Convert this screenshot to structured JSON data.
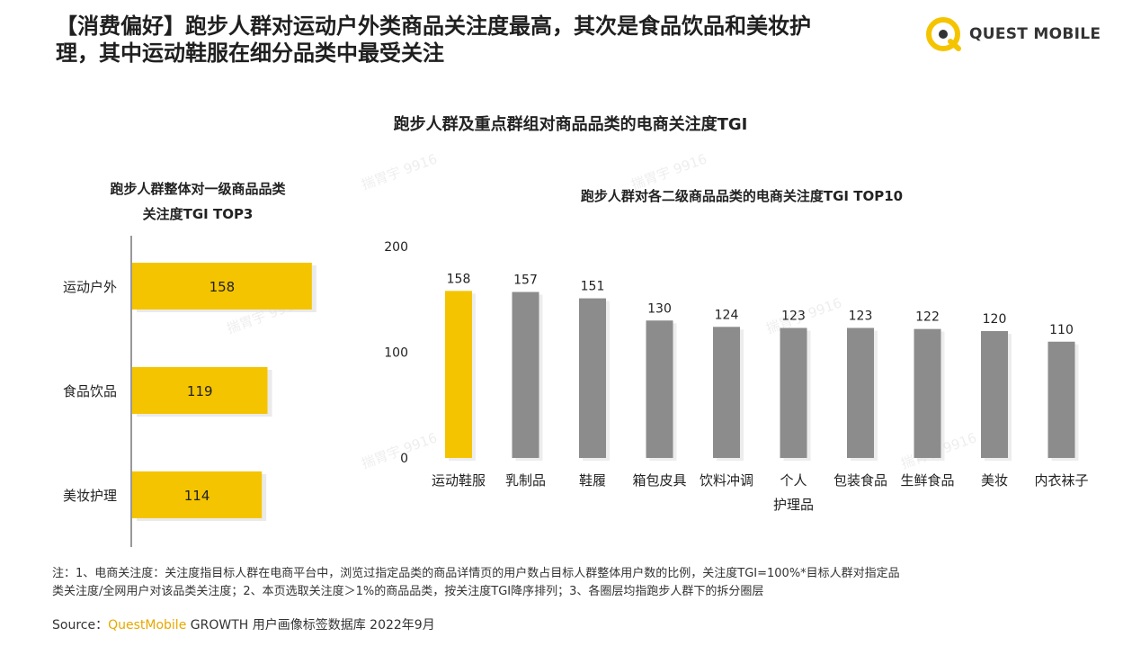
{
  "header": {
    "title_line1": "【消费偏好】跑步人群对运动户外类商品关注度最高，其次是食品饮品和美妆护",
    "title_line2": "理，其中运动鞋服在细分品类中最受关注",
    "logo_text": "QUEST MOBILE",
    "logo_icon": "quest-mobile-logo-icon"
  },
  "main_title": "跑步人群及重点群组对商品品类的电商关注度TGI",
  "chart_data": [
    {
      "type": "bar",
      "orientation": "horizontal",
      "title_line1": "跑步人群整体对一级商品品类",
      "title_line2": "关注度TGI TOP3",
      "categories": [
        "运动户外",
        "食品饮品",
        "美妆护理"
      ],
      "values": [
        158,
        119,
        114
      ],
      "bar_color": "#f5c400"
    },
    {
      "type": "bar",
      "orientation": "vertical",
      "title": "跑步人群对各二级商品品类的电商关注度TGI TOP10",
      "categories": [
        "运动鞋服",
        "乳制品",
        "鞋履",
        "箱包皮具",
        "饮料冲调",
        "个人\n护理品",
        "包装食品",
        "生鲜食品",
        "美妆",
        "内衣袜子"
      ],
      "values": [
        158,
        157,
        151,
        130,
        124,
        123,
        123,
        122,
        120,
        110
      ],
      "yticks": [
        "0",
        "100",
        "200"
      ],
      "ylim": [
        0,
        200
      ],
      "highlight_color": "#f5c400",
      "bar_color": "#8c8c8c"
    }
  ],
  "footer": {
    "note_line1": "注：1、电商关注度：关注度指目标人群在电商平台中，浏览过指定品类的商品详情页的用户数占目标人群整体用户数的比例，关注度TGI=100%*目标人群对指定品",
    "note_line2": "类关注度/全网用户对该品类关注度；2、本页选取关注度＞1%的商品品类，按关注度TGI降序排列；3、各圈层均指跑步人群下的拆分圈层",
    "source_label": "Source：",
    "source_brand": "QuestMobile",
    "source_rest": " GROWTH 用户画像标签数据库 2022年9月"
  }
}
